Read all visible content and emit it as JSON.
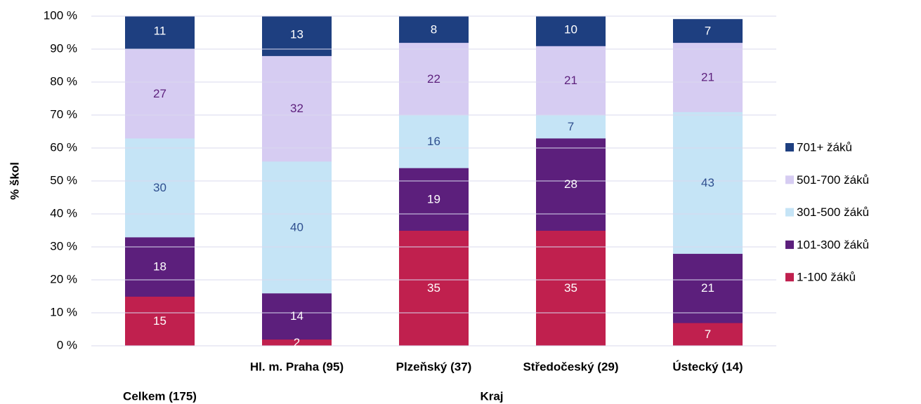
{
  "chart_data": {
    "type": "stacked_bar",
    "ylabel": "% škol",
    "xlabel": "Kraj",
    "categories": [
      "Celkem (175)",
      "Hl. m. Praha (95)",
      "Plzeňský (37)",
      "Středočeský (29)",
      "Ústecký (14)"
    ],
    "series": [
      {
        "name": "1-100 žáků",
        "color": "#c0204e",
        "label_color": "#ffffff",
        "values": [
          15,
          2,
          35,
          35,
          7
        ]
      },
      {
        "name": "101-300 žáků",
        "color": "#5c1f7c",
        "label_color": "#ffffff",
        "values": [
          18,
          14,
          19,
          28,
          21
        ]
      },
      {
        "name": "301-500 žáků",
        "color": "#c5e4f6",
        "label_color": "#2f4f8f",
        "values": [
          30,
          40,
          16,
          7,
          43
        ]
      },
      {
        "name": "501-700 žáků",
        "color": "#d6ccf2",
        "label_color": "#5c1f7c",
        "values": [
          27,
          32,
          22,
          21,
          21
        ]
      },
      {
        "name": "701+ žáků",
        "color": "#1e3f80",
        "label_color": "#ffffff",
        "values": [
          11,
          13,
          8,
          10,
          7
        ]
      }
    ],
    "ylim": [
      0,
      100
    ],
    "yticks": [
      {
        "value": 0,
        "label": "0 %"
      },
      {
        "value": 10,
        "label": "10 %"
      },
      {
        "value": 20,
        "label": "20 %"
      },
      {
        "value": 30,
        "label": "30 %"
      },
      {
        "value": 40,
        "label": "40 %"
      },
      {
        "value": 50,
        "label": "50 %"
      },
      {
        "value": 60,
        "label": "60 %"
      },
      {
        "value": 70,
        "label": "70 %"
      },
      {
        "value": 80,
        "label": "80 %"
      },
      {
        "value": 90,
        "label": "90 %"
      },
      {
        "value": 100,
        "label": "100 %"
      }
    ],
    "grid": true,
    "legend": "right"
  }
}
